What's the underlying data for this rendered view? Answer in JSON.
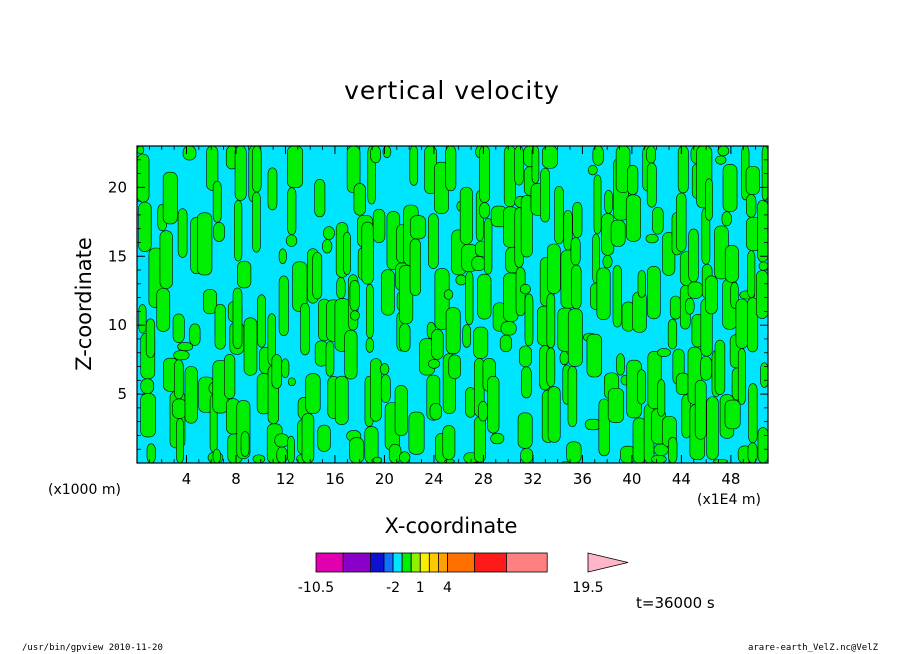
{
  "chart_data": {
    "type": "heatmap",
    "title": "vertical velocity",
    "xlabel": "X-coordinate",
    "ylabel": "Z-coordinate",
    "x_unit_left": "(x1000 m)",
    "x_unit_right": "(x1E4 m)",
    "xlim": [
      0,
      51
    ],
    "ylim": [
      0,
      23
    ],
    "x_ticks": [
      4,
      8,
      12,
      16,
      20,
      24,
      28,
      32,
      36,
      40,
      44,
      48
    ],
    "y_ticks": [
      5,
      10,
      15,
      20
    ],
    "field_colors": {
      "negative": "#00e5ff",
      "positive": "#00ee00"
    },
    "colorbar": {
      "levels": [
        -10.5,
        -7.5,
        -4.5,
        -3,
        -2,
        -1,
        0,
        1,
        2,
        3,
        4,
        7,
        10.5,
        15,
        19.5
      ],
      "colors": [
        "#e000b0",
        "#8a00c8",
        "#1010d0",
        "#1070ff",
        "#00e5ff",
        "#00ee00",
        "#90f000",
        "#f8f000",
        "#ffc800",
        "#ffa000",
        "#ff7000",
        "#ff1a1a",
        "#ff8080"
      ],
      "extend_color": "#ffb6c8",
      "labels": [
        "-10.5",
        "-2",
        "1",
        "4",
        "19.5"
      ]
    },
    "time_label": "t=36000 s"
  },
  "footer": {
    "left": "/usr/bin/gpview  2010-11-20",
    "right": "arare-earth_VelZ.nc@VelZ"
  }
}
